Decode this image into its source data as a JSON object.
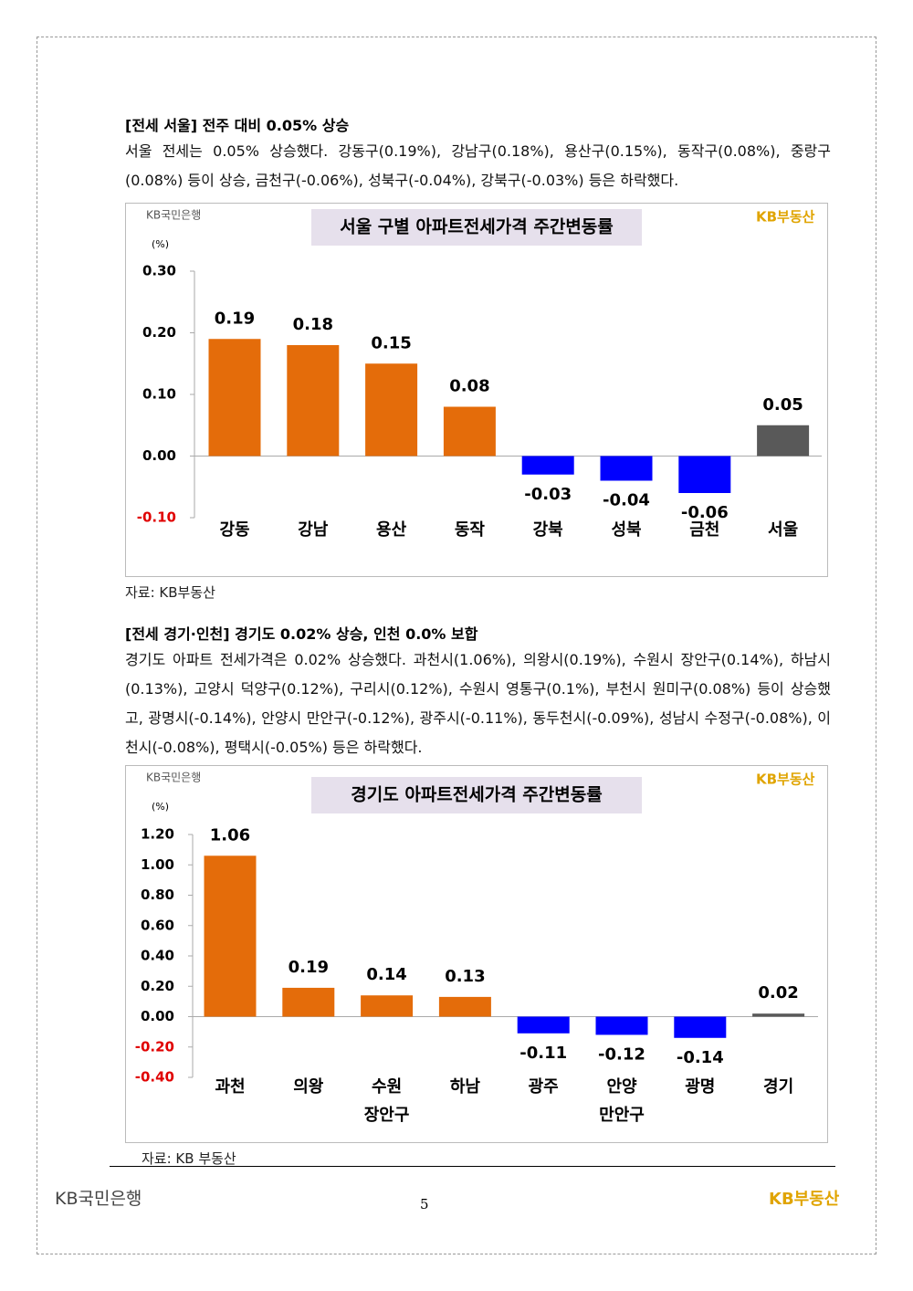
{
  "section1": {
    "heading": "[전세 서울] 전주 대비 0.05% 상승",
    "body": "서울 전세는 0.05% 상승했다. 강동구(0.19%), 강남구(0.18%), 용산구(0.15%), 동작구(0.08%), 중랑구(0.08%) 등이 상승, 금천구(-0.06%), 성북구(-0.04%), 강북구(-0.03%) 등은 하락했다.",
    "source": "자료: KB부동산"
  },
  "section2": {
    "heading": "[전세 경기·인천] 경기도 0.02% 상승, 인천 0.0% 보합",
    "body": "경기도 아파트 전세가격은 0.02% 상승했다. 과천시(1.06%), 의왕시(0.19%), 수원시 장안구(0.14%), 하남시(0.13%), 고양시 덕양구(0.12%), 구리시(0.12%), 수원시 영통구(0.1%), 부천시 원미구(0.08%) 등이 상승했고, 광명시(-0.14%), 안양시 만안구(-0.12%), 광주시(-0.11%), 동두천시(-0.09%), 성남시 수정구(-0.08%), 이천시(-0.08%), 평택시(-0.05%) 등은 하락했다.",
    "source": "자료: KB 부동산"
  },
  "chart_data": [
    {
      "type": "bar",
      "title": "서울 구별 아파트전세가격 주간변동률",
      "brand_left": "KB국민은행",
      "brand_right": "KB부동산",
      "y_unit": "(%)",
      "categories": [
        "강동",
        "강남",
        "용산",
        "동작",
        "강북",
        "성북",
        "금천",
        "서울"
      ],
      "values": [
        0.19,
        0.18,
        0.15,
        0.08,
        -0.03,
        -0.04,
        -0.06,
        0.05
      ],
      "colors": [
        "#e46c0a",
        "#e46c0a",
        "#e46c0a",
        "#e46c0a",
        "#0000ff",
        "#0000ff",
        "#0000ff",
        "#595959"
      ],
      "ylim": [
        -0.1,
        0.3
      ],
      "yticks": [
        {
          "value": 0.3,
          "label": "0.30"
        },
        {
          "value": 0.2,
          "label": "0.20"
        },
        {
          "value": 0.1,
          "label": "0.10"
        },
        {
          "value": 0,
          "label": "0.00"
        },
        {
          "value": -0.1,
          "label": "-0.10"
        }
      ]
    },
    {
      "type": "bar",
      "title": "경기도 아파트전세가격 주간변동률",
      "brand_left": "KB국민은행",
      "brand_right": "KB부동산",
      "y_unit": "(%)",
      "categories": [
        "과천",
        "의왕",
        "수원\n장안구",
        "하남",
        "광주",
        "안양\n만안구",
        "광명",
        "경기"
      ],
      "values": [
        1.06,
        0.19,
        0.14,
        0.13,
        -0.11,
        -0.12,
        -0.14,
        0.02
      ],
      "colors": [
        "#e46c0a",
        "#e46c0a",
        "#e46c0a",
        "#e46c0a",
        "#0000ff",
        "#0000ff",
        "#0000ff",
        "#595959"
      ],
      "ylim": [
        -0.4,
        1.2
      ],
      "yticks": [
        {
          "value": 1.2,
          "label": "1.20"
        },
        {
          "value": 1,
          "label": "1.00"
        },
        {
          "value": 0.8,
          "label": "0.80"
        },
        {
          "value": 0.6,
          "label": "0.60"
        },
        {
          "value": 0.4,
          "label": "0.40"
        },
        {
          "value": 0.2,
          "label": "0.20"
        },
        {
          "value": 0,
          "label": "0.00"
        },
        {
          "value": -0.2,
          "label": "-0.20"
        },
        {
          "value": -0.4,
          "label": "-0.40"
        }
      ]
    }
  ],
  "footer": {
    "brand_left": "KB국민은행",
    "page": "5",
    "brand_right": "KB부동산"
  }
}
